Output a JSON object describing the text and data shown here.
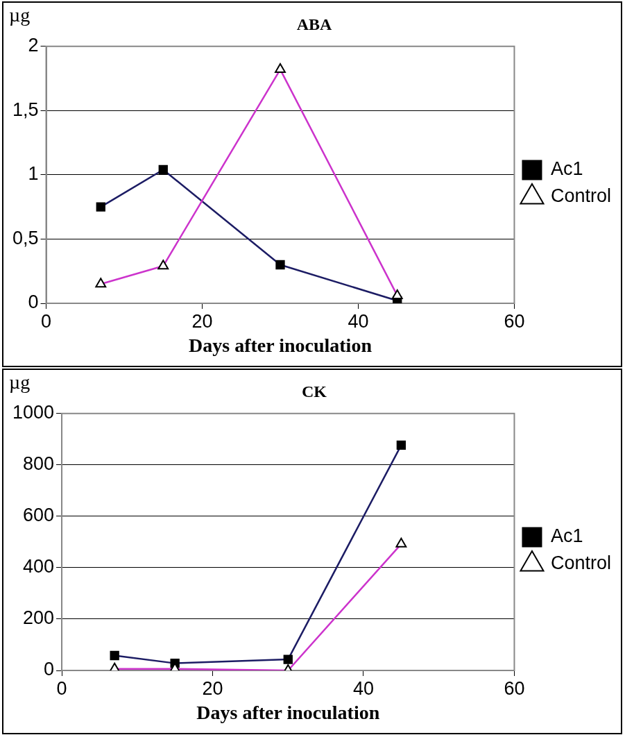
{
  "chart_data": [
    {
      "type": "line",
      "title": "ABA",
      "ylabel": "µg",
      "xlabel": "Days after inoculation",
      "x": [
        7,
        15,
        30,
        45
      ],
      "series": [
        {
          "name": "Ac1",
          "color": "#1c1c64",
          "marker": "square",
          "values": [
            0.75,
            1.04,
            0.3,
            0.02
          ]
        },
        {
          "name": "Control",
          "color": "#cc33cc",
          "marker": "triangle",
          "values": [
            0.15,
            0.29,
            1.82,
            0.06
          ]
        }
      ],
      "xlim": [
        0,
        60
      ],
      "xticks": [
        0,
        20,
        40,
        60
      ],
      "ylim": [
        0,
        2
      ],
      "yticks": [
        0,
        {
          "value": 0.5,
          "label": "0,5"
        },
        1,
        {
          "value": 1.5,
          "label": "1,5"
        },
        2
      ],
      "grid": "y",
      "legend": "right"
    },
    {
      "type": "line",
      "title": "CK",
      "ylabel": "µg",
      "xlabel": "Days after inoculation",
      "x": [
        7,
        15,
        30,
        45
      ],
      "series": [
        {
          "name": "Ac1",
          "color": "#1c1c64",
          "marker": "square",
          "values": [
            58,
            28,
            43,
            877
          ]
        },
        {
          "name": "Control",
          "color": "#cc33cc",
          "marker": "triangle",
          "values": [
            6,
            6,
            0,
            492
          ]
        }
      ],
      "xlim": [
        0,
        60
      ],
      "xticks": [
        0,
        20,
        40,
        60
      ],
      "ylim": [
        0,
        1000
      ],
      "yticks": [
        0,
        200,
        400,
        600,
        800,
        1000
      ],
      "grid": "y",
      "legend": "right"
    }
  ]
}
